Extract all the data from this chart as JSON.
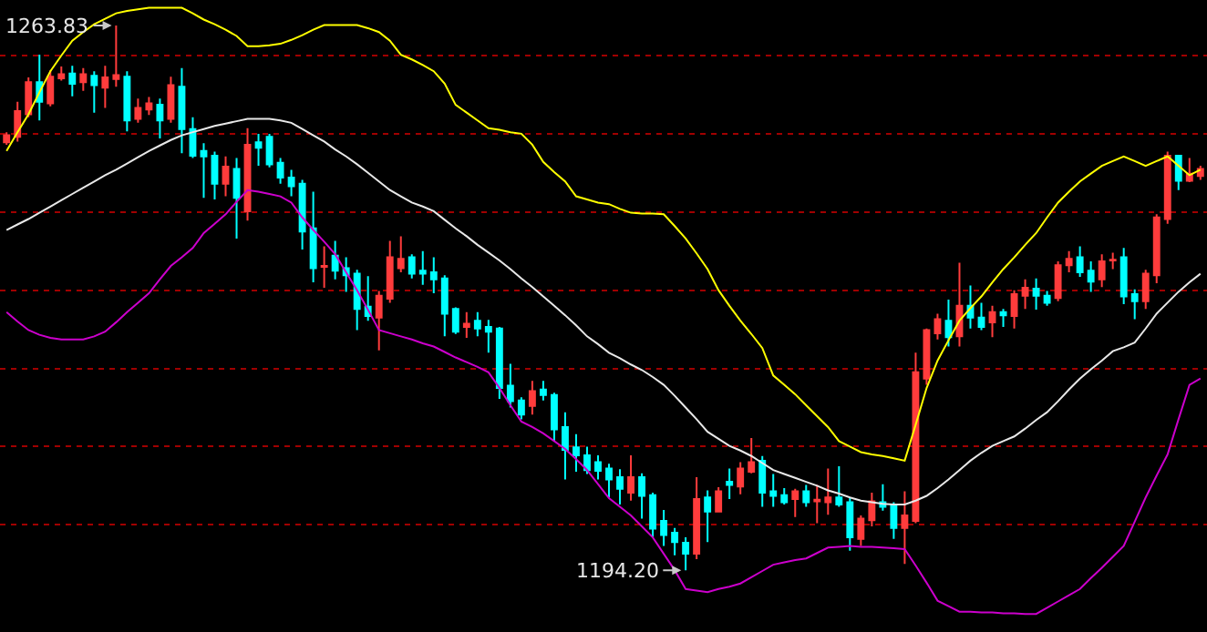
{
  "chart_data": {
    "type": "candlestick",
    "categories": [
      null,
      null,
      null,
      null,
      null,
      null,
      null,
      null,
      null,
      null,
      null,
      null,
      null,
      null,
      null,
      null,
      null,
      null,
      null,
      null,
      null,
      null,
      null,
      null,
      null,
      null,
      null,
      null,
      null,
      null,
      null,
      null,
      null,
      null,
      null,
      null,
      null,
      null,
      null,
      null,
      null,
      null,
      null,
      null,
      null,
      null,
      null,
      null,
      null,
      null,
      null,
      null,
      null,
      null,
      null,
      null,
      null,
      null,
      null,
      null,
      null,
      null,
      null,
      null,
      null,
      null,
      null,
      null,
      null,
      null,
      null,
      null,
      null,
      null,
      null,
      null,
      null,
      null,
      null,
      null,
      null,
      null,
      null,
      null,
      null,
      null,
      null,
      null,
      null,
      null,
      null,
      null,
      null,
      null,
      null,
      null,
      null,
      null,
      null,
      null,
      null,
      null,
      null,
      null,
      null,
      null,
      null,
      null,
      null,
      null
    ],
    "colors": [
      "#ff3c3c",
      "#ff3c3c",
      "#ff3c3c",
      "#00ffff",
      "#ff3c3c",
      "#ff3c3c",
      "#00ffff",
      "#ff3c3c",
      "#00ffff",
      "#ff3c3c",
      "#ff3c3c",
      "#00ffff",
      "#ff3c3c",
      "#ff3c3c",
      "#00ffff",
      "#ff3c3c",
      "#00ffff",
      "#00ffff",
      "#00ffff",
      "#00ffff",
      "#ff3c3c",
      "#00ffff",
      "#ff3c3c",
      "#00ffff",
      "#00ffff",
      "#00ffff",
      "#00ffff",
      "#00ffff",
      "#00ffff",
      "#ff3c3c",
      "#00ffff",
      "#00ffff",
      "#00ffff",
      "#00ffff",
      "#ff3c3c",
      "#ff3c3c",
      "#ff3c3c",
      "#00ffff",
      "#00ffff",
      "#00ffff",
      "#00ffff",
      "#00ffff",
      "#ff3c3c",
      "#00ffff",
      "#00ffff",
      "#00ffff",
      "#00ffff",
      "#00ffff",
      "#ff3c3c",
      "#00ffff",
      "#00ffff",
      "#00ffff",
      "#00ffff",
      "#00ffff",
      "#00ffff",
      "#00ffff",
      "#00ffff",
      "#ff3c3c",
      "#00ffff",
      "#00ffff",
      "#00ffff",
      "#00ffff",
      "#00ffff",
      "#ff3c3c",
      "#00ffff",
      "#ff3c3c",
      "#00ffff",
      "#ff3c3c",
      "#ff3c3c",
      "#00ffff",
      "#00ffff",
      "#00ffff",
      "#ff3c3c",
      "#00ffff",
      "#ff3c3c",
      "#ff3c3c",
      "#00ffff",
      "#00ffff",
      "#ff3c3c",
      "#ff3c3c",
      "#00ffff",
      "#00ffff",
      "#ff3c3c",
      "#ff3c3c",
      "#ff3c3c",
      "#ff3c3c",
      "#00ffff",
      "#ff3c3c",
      "#00ffff",
      "#00ffff",
      "#ff3c3c",
      "#00ffff",
      "#ff3c3c",
      "#ff3c3c",
      "#00ffff",
      "#00ffff",
      "#ff3c3c",
      "#ff3c3c",
      "#00ffff",
      "#00ffff",
      "#ff3c3c",
      "#ff3c3c",
      "#00ffff",
      "#00ffff",
      "#ff3c3c",
      "#ff3c3c",
      "#ff3c3c",
      "#00ffff",
      "#ff3c3c",
      "#ff3c3c"
    ],
    "ohlc": [
      [
        1248.9,
        1250.2,
        1248.6,
        1249.8
      ],
      [
        1249.6,
        1254.1,
        1249.0,
        1252.9
      ],
      [
        1252.5,
        1257.2,
        1252.1,
        1256.6
      ],
      [
        1256.6,
        1260.1,
        1251.7,
        1254.1
      ],
      [
        1253.9,
        1258.1,
        1253.5,
        1257.3
      ],
      [
        1257.1,
        1258.6,
        1256.8,
        1257.6
      ],
      [
        1257.7,
        1258.7,
        1254.8,
        1256.4
      ],
      [
        1256.6,
        1258.4,
        1255.5,
        1257.6
      ],
      [
        1257.4,
        1258.0,
        1252.7,
        1256.2
      ],
      [
        1255.9,
        1258.7,
        1253.3,
        1257.2
      ],
      [
        1257.0,
        1263.83,
        1256.0,
        1257.5
      ],
      [
        1257.3,
        1258.0,
        1250.3,
        1251.7
      ],
      [
        1251.9,
        1254.5,
        1251.4,
        1253.3
      ],
      [
        1253.1,
        1254.7,
        1252.4,
        1253.9
      ],
      [
        1253.7,
        1254.5,
        1249.4,
        1251.7
      ],
      [
        1251.9,
        1257.3,
        1251.4,
        1256.2
      ],
      [
        1256.0,
        1258.4,
        1247.5,
        1250.6
      ],
      [
        1250.6,
        1252.1,
        1246.9,
        1247.2
      ],
      [
        1247.8,
        1248.8,
        1241.8,
        1247.1
      ],
      [
        1247.2,
        1247.7,
        1241.6,
        1243.6
      ],
      [
        1243.6,
        1247.1,
        1242.0,
        1245.8
      ],
      [
        1245.5,
        1246.9,
        1236.6,
        1241.8
      ],
      [
        1240.1,
        1250.7,
        1238.9,
        1248.6
      ],
      [
        1248.9,
        1250.0,
        1245.9,
        1248.2
      ],
      [
        1249.6,
        1250.0,
        1245.7,
        1246.1
      ],
      [
        1246.3,
        1246.9,
        1243.6,
        1244.4
      ],
      [
        1244.4,
        1245.4,
        1242.0,
        1243.3
      ],
      [
        1243.6,
        1244.1,
        1235.2,
        1237.5
      ],
      [
        1237.9,
        1242.6,
        1231.0,
        1232.8
      ],
      [
        1233.0,
        1235.6,
        1230.3,
        1233.1
      ],
      [
        1234.4,
        1236.3,
        1231.4,
        1232.5
      ],
      [
        1232.8,
        1234.2,
        1229.8,
        1231.9
      ],
      [
        1232.1,
        1232.6,
        1224.9,
        1227.6
      ],
      [
        1227.9,
        1231.8,
        1226.1,
        1226.7
      ],
      [
        1226.5,
        1229.9,
        1222.3,
        1229.3
      ],
      [
        1228.9,
        1236.3,
        1228.4,
        1234.2
      ],
      [
        1232.8,
        1236.9,
        1232.3,
        1234.0
      ],
      [
        1234.2,
        1234.6,
        1231.5,
        1232.1
      ],
      [
        1232.5,
        1235.0,
        1230.7,
        1232.1
      ],
      [
        1232.3,
        1234.2,
        1229.6,
        1231.4
      ],
      [
        1231.5,
        1231.9,
        1224.1,
        1227.0
      ],
      [
        1227.6,
        1227.8,
        1224.4,
        1224.7
      ],
      [
        1225.3,
        1227.2,
        1223.9,
        1225.7
      ],
      [
        1226.1,
        1227.2,
        1224.1,
        1225.1
      ],
      [
        1225.3,
        1226.2,
        1222.0,
        1224.7
      ],
      [
        1225.1,
        1225.3,
        1216.1,
        1217.5
      ],
      [
        1217.8,
        1220.6,
        1215.0,
        1215.8
      ],
      [
        1215.9,
        1216.3,
        1213.5,
        1214.1
      ],
      [
        1215.2,
        1218.4,
        1214.1,
        1217.1
      ],
      [
        1217.3,
        1218.4,
        1215.9,
        1216.6
      ],
      [
        1216.6,
        1216.9,
        1210.7,
        1212.2
      ],
      [
        1212.5,
        1214.4,
        1205.8,
        1209.6
      ],
      [
        1209.9,
        1211.6,
        1206.8,
        1208.9
      ],
      [
        1208.9,
        1210.0,
        1206.5,
        1207.0
      ],
      [
        1208.0,
        1208.9,
        1205.8,
        1206.9
      ],
      [
        1207.2,
        1207.8,
        1203.5,
        1205.8
      ],
      [
        1206.1,
        1207.1,
        1202.6,
        1204.6
      ],
      [
        1204.1,
        1208.9,
        1203.1,
        1206.1
      ],
      [
        1206.1,
        1206.6,
        1200.8,
        1203.7
      ],
      [
        1203.8,
        1204.1,
        1198.4,
        1199.5
      ],
      [
        1200.5,
        1201.9,
        1197.3,
        1198.7
      ],
      [
        1199.0,
        1199.6,
        1196.1,
        1197.8
      ],
      [
        1197.7,
        1198.4,
        1194.2,
        1196.3
      ],
      [
        1196.3,
        1206.1,
        1195.6,
        1203.3
      ],
      [
        1203.5,
        1204.4,
        1197.8,
        1201.7
      ],
      [
        1201.7,
        1204.8,
        1201.6,
        1204.3
      ],
      [
        1205.5,
        1207.2,
        1203.3,
        1205.1
      ],
      [
        1204.9,
        1208.0,
        1203.9,
        1207.2
      ],
      [
        1206.8,
        1211.1,
        1206.6,
        1208.0
      ],
      [
        1208.2,
        1208.8,
        1202.3,
        1204.1
      ],
      [
        1204.3,
        1206.5,
        1202.3,
        1203.7
      ],
      [
        1203.8,
        1204.7,
        1202.6,
        1202.9
      ],
      [
        1203.3,
        1204.6,
        1201.0,
        1204.3
      ],
      [
        1204.3,
        1205.1,
        1202.3,
        1202.9
      ],
      [
        1203.0,
        1205.1,
        1200.2,
        1203.2
      ],
      [
        1202.9,
        1207.2,
        1201.3,
        1203.5
      ],
      [
        1203.5,
        1207.5,
        1202.3,
        1202.6
      ],
      [
        1202.9,
        1203.5,
        1196.7,
        1198.4
      ],
      [
        1198.2,
        1201.2,
        1197.3,
        1200.8
      ],
      [
        1200.6,
        1204.1,
        1199.8,
        1203.0
      ],
      [
        1202.9,
        1205.2,
        1201.8,
        1202.3
      ],
      [
        1202.6,
        1202.9,
        1198.2,
        1199.6
      ],
      [
        1199.6,
        1204.3,
        1195.0,
        1201.2
      ],
      [
        1200.5,
        1222.0,
        1200.2,
        1219.5
      ],
      [
        1218.7,
        1225.1,
        1217.9,
        1224.9
      ],
      [
        1224.5,
        1227.0,
        1223.7,
        1226.3
      ],
      [
        1226.1,
        1228.8,
        1222.8,
        1224.0
      ],
      [
        1224.1,
        1233.5,
        1222.8,
        1228.0
      ],
      [
        1228.0,
        1230.6,
        1225.1,
        1226.5
      ],
      [
        1226.5,
        1228.4,
        1224.9,
        1225.3
      ],
      [
        1225.9,
        1228.0,
        1224.0,
        1227.2
      ],
      [
        1227.2,
        1227.6,
        1225.3,
        1226.8
      ],
      [
        1226.7,
        1230.0,
        1225.1,
        1229.5
      ],
      [
        1229.3,
        1231.4,
        1227.6,
        1230.3
      ],
      [
        1230.2,
        1231.5,
        1227.5,
        1229.3
      ],
      [
        1229.3,
        1229.9,
        1228.0,
        1228.4
      ],
      [
        1229.0,
        1233.7,
        1228.6,
        1233.2
      ],
      [
        1233.2,
        1235.0,
        1232.3,
        1234.0
      ],
      [
        1234.2,
        1235.6,
        1231.7,
        1232.3
      ],
      [
        1232.5,
        1233.7,
        1229.8,
        1231.1
      ],
      [
        1231.4,
        1234.6,
        1230.4,
        1233.7
      ],
      [
        1233.8,
        1234.8,
        1232.7,
        1233.9
      ],
      [
        1234.2,
        1235.4,
        1228.2,
        1229.2
      ],
      [
        1229.5,
        1230.1,
        1226.3,
        1228.6
      ],
      [
        1228.6,
        1232.6,
        1227.6,
        1232.1
      ],
      [
        1231.9,
        1239.7,
        1230.9,
        1239.3
      ],
      [
        1239.1,
        1247.7,
        1238.5,
        1247.2
      ],
      [
        1247.2,
        1247.2,
        1242.8,
        1244.0
      ],
      [
        1244.0,
        1246.9,
        1243.8,
        1244.9
      ],
      [
        1244.6,
        1245.9,
        1244.1,
        1245.5
      ]
    ],
    "series": [
      {
        "type": "line",
        "color": "#ffff00",
        "values": [
          1247.8,
          1250.2,
          1252.5,
          1255.3,
          1258.0,
          1260.0,
          1261.9,
          1263.0,
          1264.0,
          1264.7,
          1265.4,
          1265.7,
          1265.9,
          1266.1,
          1266.1,
          1266.1,
          1266.1,
          1265.4,
          1264.6,
          1264.0,
          1263.3,
          1262.5,
          1261.2,
          1261.2,
          1261.3,
          1261.5,
          1262.0,
          1262.6,
          1263.3,
          1263.9,
          1263.9,
          1263.9,
          1263.9,
          1263.5,
          1263.0,
          1261.9,
          1260.1,
          1259.5,
          1258.8,
          1258.0,
          1256.4,
          1253.7,
          1252.7,
          1251.7,
          1250.7,
          1250.5,
          1250.2,
          1250.0,
          1248.6,
          1246.4,
          1245.1,
          1243.9,
          1242.0,
          1241.6,
          1241.2,
          1241.0,
          1240.4,
          1239.9,
          1239.8,
          1239.8,
          1239.7,
          1238.2,
          1236.6,
          1234.7,
          1232.7,
          1230.0,
          1228.0,
          1226.1,
          1224.4,
          1222.6,
          1219.1,
          1217.9,
          1216.7,
          1215.3,
          1213.9,
          1212.5,
          1210.7,
          1210.0,
          1209.3,
          1209.0,
          1208.8,
          1208.5,
          1208.2,
          1212.8,
          1217.5,
          1221.0,
          1223.6,
          1226.1,
          1227.7,
          1229.2,
          1231.0,
          1232.7,
          1234.2,
          1235.8,
          1237.3,
          1239.3,
          1241.2,
          1242.6,
          1243.9,
          1244.9,
          1245.9,
          1246.5,
          1247.1,
          1246.5,
          1245.9,
          1246.5,
          1247.1,
          1245.9,
          1244.7,
          1245.4
        ]
      },
      {
        "type": "line",
        "color": "#e8e8e8",
        "values": [
          1237.7,
          1238.4,
          1239.1,
          1239.9,
          1240.7,
          1241.5,
          1242.3,
          1243.1,
          1243.9,
          1244.7,
          1245.4,
          1246.2,
          1247.0,
          1247.8,
          1248.5,
          1249.2,
          1249.8,
          1250.2,
          1250.6,
          1251.0,
          1251.3,
          1251.6,
          1251.9,
          1251.9,
          1251.9,
          1251.7,
          1251.4,
          1250.6,
          1249.8,
          1249.0,
          1248.0,
          1247.1,
          1246.1,
          1245.0,
          1243.9,
          1242.8,
          1242.0,
          1241.2,
          1240.7,
          1240.1,
          1239.0,
          1237.9,
          1236.9,
          1235.8,
          1234.8,
          1233.8,
          1232.7,
          1231.5,
          1230.4,
          1229.2,
          1228.0,
          1226.8,
          1225.5,
          1224.1,
          1223.1,
          1222.0,
          1221.3,
          1220.5,
          1219.8,
          1218.9,
          1217.9,
          1216.5,
          1215.0,
          1213.5,
          1211.9,
          1211.0,
          1210.1,
          1209.5,
          1208.8,
          1207.9,
          1207.0,
          1206.5,
          1206.0,
          1205.5,
          1205.0,
          1204.4,
          1204.0,
          1203.5,
          1203.1,
          1202.9,
          1202.7,
          1202.6,
          1202.6,
          1203.1,
          1203.7,
          1204.7,
          1205.8,
          1207.0,
          1208.2,
          1209.2,
          1210.1,
          1210.7,
          1211.3,
          1212.3,
          1213.4,
          1214.4,
          1215.8,
          1217.3,
          1218.7,
          1219.9,
          1221.0,
          1222.2,
          1222.7,
          1223.3,
          1225.1,
          1227.0,
          1228.4,
          1229.8,
          1231.0,
          1232.1
        ]
      },
      {
        "type": "line",
        "color": "#cc00cc",
        "values": [
          1227.2,
          1226.0,
          1224.9,
          1224.3,
          1223.9,
          1223.7,
          1223.7,
          1223.7,
          1224.1,
          1224.7,
          1225.9,
          1227.2,
          1228.4,
          1229.6,
          1231.4,
          1233.1,
          1234.2,
          1235.4,
          1237.3,
          1238.5,
          1239.7,
          1241.3,
          1242.8,
          1242.6,
          1242.3,
          1242.0,
          1241.2,
          1239.3,
          1237.7,
          1236.2,
          1234.6,
          1232.3,
          1230.0,
          1227.5,
          1224.9,
          1224.5,
          1224.1,
          1223.7,
          1223.2,
          1222.8,
          1222.1,
          1221.4,
          1220.8,
          1220.2,
          1219.5,
          1217.5,
          1215.3,
          1213.2,
          1212.5,
          1211.7,
          1210.7,
          1209.7,
          1208.4,
          1207.0,
          1205.2,
          1203.4,
          1202.3,
          1201.2,
          1199.8,
          1198.4,
          1196.3,
          1194.2,
          1191.8,
          1191.6,
          1191.4,
          1191.8,
          1192.1,
          1192.5,
          1193.3,
          1194.1,
          1194.9,
          1195.2,
          1195.5,
          1195.7,
          1196.4,
          1197.1,
          1197.2,
          1197.3,
          1197.2,
          1197.2,
          1197.1,
          1197.0,
          1196.9,
          1194.8,
          1192.6,
          1190.3,
          1189.6,
          1188.9,
          1188.9,
          1188.8,
          1188.8,
          1188.7,
          1188.7,
          1188.6,
          1188.6,
          1189.4,
          1190.2,
          1191.0,
          1191.8,
          1193.2,
          1194.5,
          1195.9,
          1197.3,
          1200.4,
          1203.5,
          1206.3,
          1209.0,
          1213.5,
          1217.9,
          1218.7
        ]
      }
    ],
    "ylim": [
      1186.3,
      1267.1
    ],
    "yticks": [
      {
        "value": 1200,
        "label": null
      },
      {
        "value": 1210,
        "label": null
      },
      {
        "value": 1220,
        "label": null
      },
      {
        "value": 1230,
        "label": null
      },
      {
        "value": 1240,
        "label": null
      },
      {
        "value": 1250,
        "label": null
      },
      {
        "value": 1260,
        "label": null
      }
    ],
    "grid": "y",
    "annotations": [
      "1263.83",
      "1194.20"
    ]
  }
}
